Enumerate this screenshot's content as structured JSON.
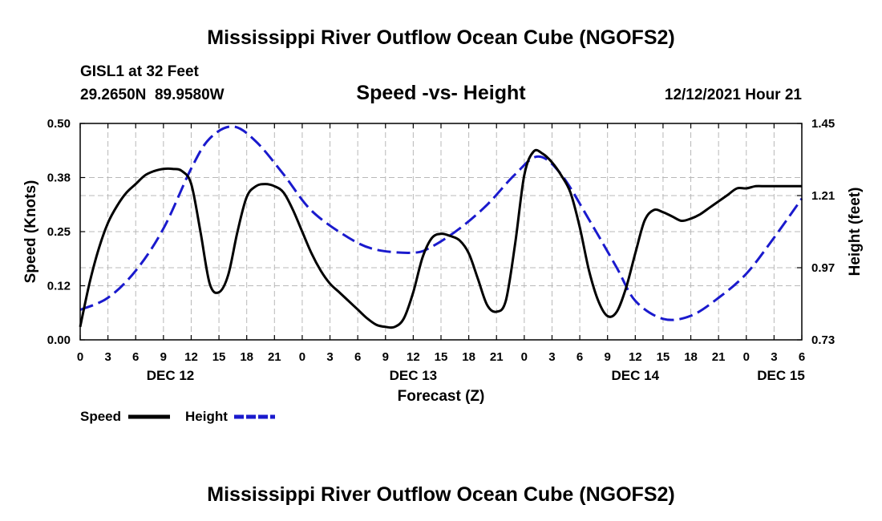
{
  "chart_data": {
    "type": "line",
    "title": "Mississippi River Outflow Ocean Cube (NGOFS2)",
    "station": "GISL1 at 32 Feet",
    "coords": "29.2650N  89.9580W",
    "subtitle": "Speed -vs- Height",
    "date_label": "12/12/2021 Hour 21",
    "xlabel": "Forecast (Z)",
    "ylabel_left": "Speed (Knots)",
    "ylabel_right": "Height (feet)",
    "footer_title": "Mississippi River Outflow Ocean Cube (NGOFS2)",
    "x_hours_range": [
      0,
      78
    ],
    "ylim_left": [
      0,
      0.5
    ],
    "ylim_right": [
      0.73,
      1.45
    ],
    "left_ticks": [
      0,
      0.125,
      0.25,
      0.375,
      0.5
    ],
    "left_tick_labels": [
      "0.00",
      "0.12",
      "0.25",
      "0.38",
      "0.50"
    ],
    "right_ticks": [
      0.73,
      0.97,
      1.21,
      1.45
    ],
    "right_tick_labels": [
      "0.73",
      "0.97",
      "1.21",
      "1.45"
    ],
    "x_ticks": [
      0,
      3,
      6,
      9,
      12,
      15,
      18,
      21,
      24,
      27,
      30,
      33,
      36,
      39,
      42,
      45,
      48,
      51,
      54,
      57,
      60,
      63,
      66,
      69,
      72,
      75,
      78
    ],
    "x_tick_labels": [
      "0",
      "3",
      "6",
      "9",
      "12",
      "15",
      "18",
      "21",
      "0",
      "3",
      "6",
      "9",
      "12",
      "15",
      "18",
      "21",
      "0",
      "3",
      "6",
      "9",
      "12",
      "15",
      "18",
      "21",
      "0",
      "3",
      "6"
    ],
    "day_labels": [
      {
        "label": "DEC 12",
        "hour": 9.75
      },
      {
        "label": "DEC 13",
        "hour": 36
      },
      {
        "label": "DEC 14",
        "hour": 60
      },
      {
        "label": "DEC 15",
        "hour": 75.75
      }
    ],
    "grid": true,
    "legend_position": "bottom-left",
    "series": [
      {
        "name": "Speed",
        "axis": "left",
        "color": "#000000",
        "style": "solid",
        "x": [
          0,
          1,
          2,
          3,
          4,
          5,
          6,
          7,
          8,
          9,
          10,
          11,
          12,
          13,
          14,
          15,
          16,
          17,
          18,
          19,
          20,
          21,
          22,
          23,
          24,
          25,
          26,
          27,
          28,
          29,
          30,
          31,
          32,
          33,
          34,
          35,
          36,
          37,
          38,
          39,
          40,
          41,
          42,
          43,
          44,
          45,
          46,
          47,
          48,
          49,
          50,
          51,
          52,
          53,
          54,
          55,
          56,
          57,
          58,
          59,
          60,
          61,
          62,
          63,
          64,
          65,
          66,
          67,
          68,
          69,
          70,
          71,
          72,
          73,
          74,
          75,
          76,
          77,
          78
        ],
        "values": [
          0.03,
          0.13,
          0.21,
          0.27,
          0.31,
          0.34,
          0.36,
          0.38,
          0.39,
          0.395,
          0.395,
          0.39,
          0.36,
          0.25,
          0.13,
          0.11,
          0.15,
          0.25,
          0.33,
          0.355,
          0.36,
          0.355,
          0.34,
          0.3,
          0.25,
          0.2,
          0.16,
          0.13,
          0.11,
          0.09,
          0.07,
          0.05,
          0.035,
          0.03,
          0.03,
          0.05,
          0.11,
          0.19,
          0.235,
          0.245,
          0.24,
          0.23,
          0.2,
          0.14,
          0.08,
          0.065,
          0.09,
          0.22,
          0.38,
          0.435,
          0.43,
          0.41,
          0.38,
          0.34,
          0.26,
          0.16,
          0.09,
          0.055,
          0.065,
          0.12,
          0.2,
          0.275,
          0.3,
          0.295,
          0.285,
          0.275,
          0.28,
          0.29,
          0.305,
          0.32,
          0.335,
          0.35,
          0.35,
          0.355,
          0.355,
          0.355,
          0.355,
          0.355,
          0.355
        ]
      },
      {
        "name": "Height",
        "axis": "right",
        "color": "#1a1acd",
        "style": "dashed",
        "x": [
          0,
          3,
          6,
          9,
          12,
          14,
          16.5,
          19,
          22,
          25,
          29,
          32,
          36,
          38,
          41,
          44,
          47,
          49.5,
          52,
          55,
          58,
          60,
          63,
          66,
          69,
          72,
          75,
          78
        ],
        "values": [
          0.83,
          0.87,
          0.96,
          1.1,
          1.3,
          1.4,
          1.44,
          1.39,
          1.28,
          1.16,
          1.07,
          1.03,
          1.02,
          1.04,
          1.1,
          1.18,
          1.28,
          1.34,
          1.28,
          1.13,
          0.97,
          0.86,
          0.8,
          0.81,
          0.87,
          0.95,
          1.07,
          1.2
        ]
      }
    ]
  }
}
